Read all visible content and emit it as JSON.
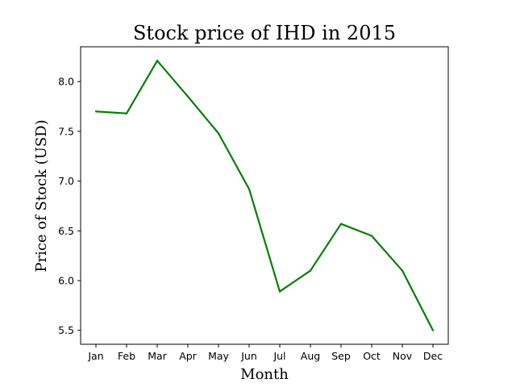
{
  "chart_data": {
    "type": "line",
    "title": "Stock price of IHD in 2015",
    "xlabel": "Month",
    "ylabel": "Price of Stock (USD)",
    "categories": [
      "Jan",
      "Feb",
      "Mar",
      "Apr",
      "May",
      "Jun",
      "Jul",
      "Aug",
      "Sep",
      "Oct",
      "Nov",
      "Dec"
    ],
    "series": [
      {
        "values": [
          7.7,
          7.68,
          8.21,
          7.85,
          7.48,
          6.92,
          5.89,
          6.1,
          6.57,
          6.45,
          6.1,
          5.5
        ]
      }
    ],
    "yticks": [
      "5.5",
      "6.0",
      "6.5",
      "7.0",
      "7.5",
      "8.0"
    ],
    "ylim": [
      5.36,
      8.35
    ],
    "line_color": "#008000",
    "grid": false,
    "legend": "none"
  }
}
